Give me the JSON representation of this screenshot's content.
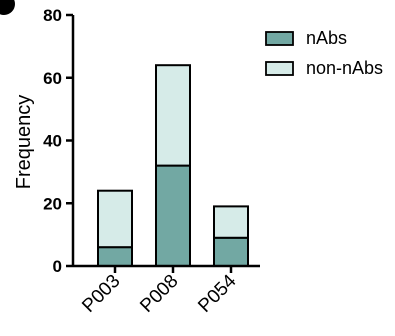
{
  "chart_data": {
    "type": "bar",
    "stacked": true,
    "ylabel": "Frequency",
    "xlabel": "",
    "ylim": [
      0,
      80
    ],
    "yticks": [
      0,
      20,
      40,
      60,
      80
    ],
    "categories": [
      "P003",
      "P008",
      "P054"
    ],
    "series": [
      {
        "name": "nAbs",
        "values": [
          6,
          32,
          9
        ],
        "color": "#72a8a3"
      },
      {
        "name": "non-nAbs",
        "values": [
          18,
          32,
          10
        ],
        "color": "#d6ebe8"
      }
    ],
    "legend_position": "top-right",
    "grid": false
  }
}
